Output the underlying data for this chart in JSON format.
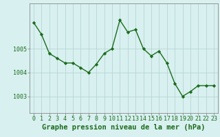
{
  "x": [
    0,
    1,
    2,
    3,
    4,
    5,
    6,
    7,
    8,
    9,
    10,
    11,
    12,
    13,
    14,
    15,
    16,
    17,
    18,
    19,
    20,
    21,
    22,
    23
  ],
  "y": [
    1006.1,
    1005.6,
    1004.8,
    1004.6,
    1004.4,
    1004.4,
    1004.2,
    1004.0,
    1004.35,
    1004.8,
    1005.0,
    1006.2,
    1005.7,
    1005.8,
    1005.0,
    1004.7,
    1004.9,
    1004.4,
    1003.55,
    1003.0,
    1003.2,
    1003.45,
    1003.45,
    1003.45
  ],
  "line_color": "#1a6b1a",
  "marker": "D",
  "marker_size": 2.2,
  "line_width": 1.0,
  "bg_color": "#d8f0f0",
  "grid_color": "#b8d4d4",
  "ylabel_ticks": [
    1003,
    1004,
    1005
  ],
  "ylim": [
    1002.3,
    1006.9
  ],
  "xlim": [
    -0.5,
    23.5
  ],
  "xlabel": "Graphe pression niveau de la mer (hPa)",
  "xlabel_fontsize": 7.5,
  "tick_fontsize": 6.0,
  "tick_color": "#1a6b1a",
  "label_color": "#1a6b1a",
  "spine_color": "#888888"
}
